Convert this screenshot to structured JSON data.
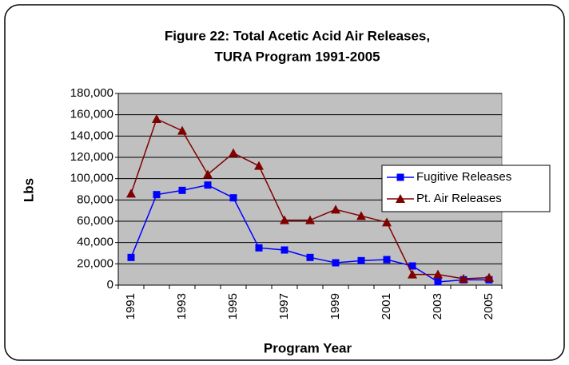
{
  "chart_data": {
    "type": "line",
    "title": [
      "Figure 22: Total Acetic Acid Air Releases,",
      "TURA Program 1991-2005"
    ],
    "x_label": "Program Year",
    "y_label": "Lbs",
    "categories": [
      "1991",
      null,
      "1993",
      null,
      "1995",
      null,
      "1997",
      null,
      "1999",
      null,
      "2001",
      null,
      "2003",
      null,
      "2005"
    ],
    "series": [
      {
        "name": "Fugitive Releases",
        "color": "#0000ff",
        "marker": "square",
        "values": [
          26000,
          85000,
          89000,
          94000,
          82000,
          35000,
          33000,
          26000,
          21000,
          23000,
          24000,
          18000,
          3000,
          5000,
          5000
        ]
      },
      {
        "name": "Pt. Air Releases",
        "color": "#800000",
        "marker": "triangle",
        "values": [
          86000,
          156000,
          145000,
          104000,
          124000,
          112000,
          61000,
          61000,
          71000,
          65000,
          59000,
          10000,
          10000,
          6000,
          7000
        ]
      }
    ],
    "ylim": [
      0,
      180000
    ],
    "yticks": [
      0,
      {
        "value": 20000,
        "label": "20,000"
      },
      {
        "value": 40000,
        "label": "40,000"
      },
      {
        "value": 60000,
        "label": "60,000"
      },
      {
        "value": 80000,
        "label": "80,000"
      },
      {
        "value": 100000,
        "label": "100,000"
      },
      {
        "value": 120000,
        "label": "120,000"
      },
      {
        "value": 140000,
        "label": "140,000"
      },
      {
        "value": 160000,
        "label": "160,000"
      },
      {
        "value": 180000,
        "label": "180,000"
      }
    ],
    "grid": true,
    "legend": "right",
    "plot_background": "#c0c0c0"
  }
}
